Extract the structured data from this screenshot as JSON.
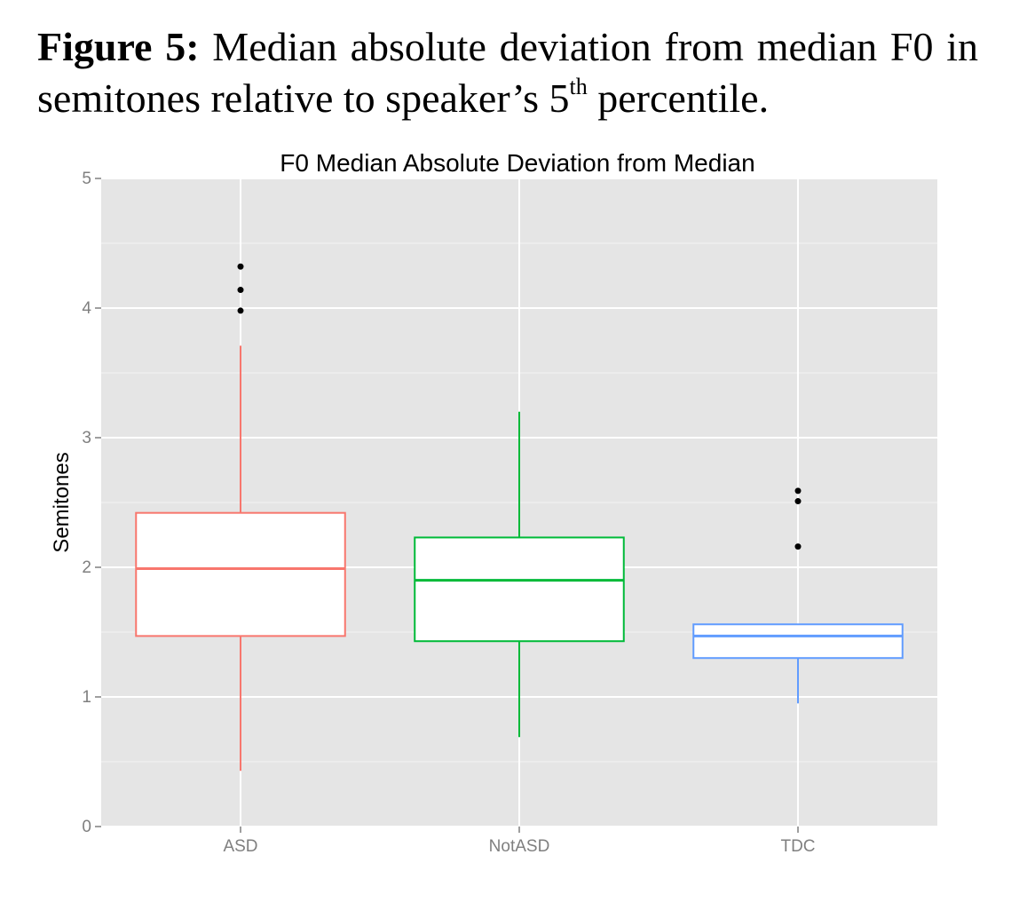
{
  "caption": {
    "label": "Figure 5:",
    "text_before_sup": " Median absolute deviation from median F0 in semitones relative to speaker’s 5",
    "sup": "th",
    "text_after_sup": " percentile."
  },
  "chart_data": {
    "type": "box",
    "title": "F0 Median Absolute Deviation from Median",
    "xlabel": "",
    "ylabel": "Semitones",
    "ylim": [
      0,
      5
    ],
    "yticks": [
      0,
      1,
      2,
      3,
      4,
      5
    ],
    "grid": true,
    "legend": "none",
    "categories": [
      "ASD",
      "NotASD",
      "TDC"
    ],
    "colors": [
      "#f8766d",
      "#00ba38",
      "#619cff"
    ],
    "boxes": [
      {
        "category": "ASD",
        "whisker_low": 0.43,
        "q1": 1.47,
        "median": 1.99,
        "q3": 2.42,
        "whisker_high": 3.71,
        "outliers": [
          3.98,
          4.14,
          4.32
        ]
      },
      {
        "category": "NotASD",
        "whisker_low": 0.69,
        "q1": 1.43,
        "median": 1.9,
        "q3": 2.23,
        "whisker_high": 3.2,
        "outliers": []
      },
      {
        "category": "TDC",
        "whisker_low": 0.95,
        "q1": 1.3,
        "median": 1.47,
        "q3": 1.56,
        "whisker_high": 1.56,
        "outliers": [
          2.16,
          2.51,
          2.59
        ]
      }
    ]
  }
}
